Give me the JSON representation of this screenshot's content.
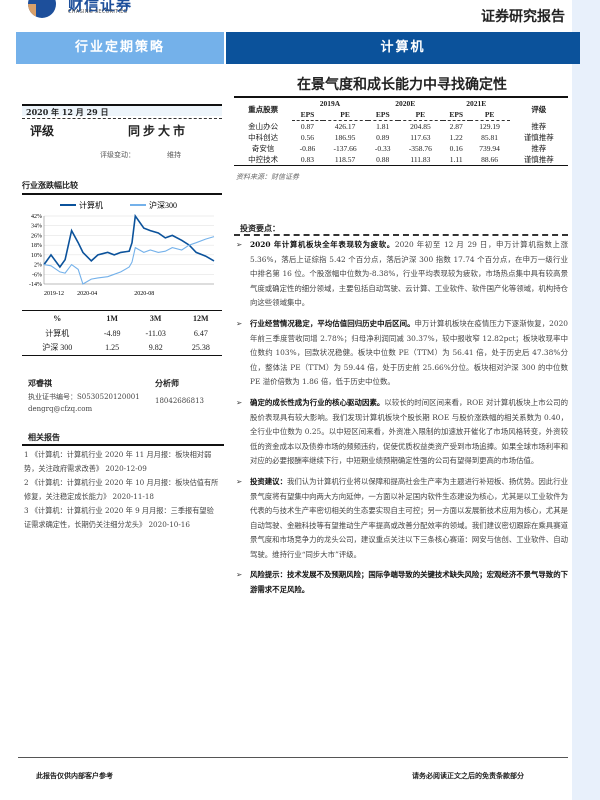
{
  "header": {
    "logo_cn": "财信证券",
    "logo_en": "CHASING SECURITIES",
    "report_type": "证券研究报告"
  },
  "band": {
    "left": "行业定期策略",
    "right": "计算机"
  },
  "title": "在景气度和成长能力中寻找确定性",
  "date": "2020 年 12 月 29 日",
  "rating": {
    "label": "评级",
    "value": "同步大市",
    "change_label": "评级变动：",
    "change_value": "维持"
  },
  "perf_section": {
    "title": "行业涨跌幅比较"
  },
  "chart_data": {
    "type": "line",
    "series": [
      {
        "name": "计算机",
        "color": "#0b529b",
        "values": [
          2,
          10,
          0,
          6,
          30,
          20,
          12,
          5,
          10,
          12,
          10,
          12,
          13,
          20,
          42,
          32,
          30,
          28,
          24,
          26,
          22,
          18,
          12,
          9,
          5
        ]
      },
      {
        "name": "沪深300",
        "color": "#74b1ea",
        "values": [
          2,
          1,
          -4,
          -5,
          2,
          -2,
          -14,
          -10,
          -9,
          -8,
          -6,
          -4,
          0,
          4,
          16,
          12,
          14,
          12,
          13,
          16,
          14,
          18,
          20,
          23,
          25
        ]
      }
    ],
    "x": [
      "2019-12-31",
      "2020-01-15",
      "2020-02-03",
      "2020-02-14",
      "2020-02-28",
      "2020-03-13",
      "2020-03-23",
      "2020-04-10",
      "2020-04-24",
      "2020-05-15",
      "2020-05-29",
      "2020-06-12",
      "2020-06-30",
      "2020-07-06",
      "2020-07-13",
      "2020-07-31",
      "2020-08-14",
      "2020-08-31",
      "2020-09-15",
      "2020-09-30",
      "2020-10-20",
      "2020-11-05",
      "2020-11-20",
      "2020-12-10",
      "2020-12-28"
    ],
    "xticks": [
      "2019-12",
      "2020-04",
      "2020-08"
    ],
    "yticks": [
      "42%",
      "34%",
      "26%",
      "18%",
      "10%",
      "2%",
      "-6%",
      "-14%"
    ],
    "ylim": [
      -14,
      42
    ],
    "grid": true,
    "legend": "top"
  },
  "perf_table": {
    "headers": [
      "%",
      "1M",
      "3M",
      "12M"
    ],
    "rows": [
      [
        "计算机",
        "-4.89",
        "-11.03",
        "6.47"
      ],
      [
        "沪深 300",
        "1.25",
        "9.82",
        "25.38"
      ]
    ]
  },
  "analyst": {
    "name": "邓睿祺",
    "title": "分析师",
    "license": "执业证书编号：S0530520120001",
    "phone": "18042686813",
    "email": "dengrq@cfzq.com"
  },
  "related": {
    "title": "相关报告",
    "items": [
      "1 《计算机：计算机行业 2020 年 11 月月报：板块相对弱势，关注政府需求改善》 2020-12-09",
      "2 《计算机：计算机行业 2020 年 10 月月报：板块估值有所修复，关注稳定成长能力》 2020-11-18",
      "3 《计算机：计算机行业 2020 年 9 月月报：三季报有望验证需求确定性，长期仍关注细分龙头》 2020-10-16"
    ]
  },
  "stocks": {
    "header": "重点股票",
    "years": [
      "2019A",
      "2020E",
      "2021E"
    ],
    "sub": [
      "EPS",
      "PE",
      "EPS",
      "PE",
      "EPS",
      "PE"
    ],
    "rating_header": "评级",
    "rows": [
      [
        "金山办公",
        "0.87",
        "426.17",
        "1.81",
        "204.85",
        "2.87",
        "129.19",
        "推荐"
      ],
      [
        "中科创达",
        "0.56",
        "186.95",
        "0.89",
        "117.63",
        "1.22",
        "85.81",
        "谨慎推荐"
      ],
      [
        "奇安信",
        "-0.86",
        "-137.66",
        "-0.33",
        "-358.76",
        "0.16",
        "739.94",
        "推荐"
      ],
      [
        "中控技术",
        "0.83",
        "118.57",
        "0.88",
        "111.83",
        "1.11",
        "88.66",
        "谨慎推荐"
      ]
    ],
    "source": "资料来源：财信证券"
  },
  "key_points": {
    "title": "投资要点：",
    "items": [
      {
        "lead": "2020 年计算机板块全年表现较为疲软。",
        "text": "2020 年初至 12 月 29 日，申万计算机指数上涨 5.36%，落后上证综指 5.42 个百分点，落后沪深 300 指数 17.74 个百分点，在申万一级行业中排名第 16 位。个股涨幅中位数为-8.38%，行业平均表现较为疲软，市场热点集中具有较高景气度或确定性的细分领域，主要包括自动驾驶、云计算、工业软件、软件国产化等领域，机构持仓向这些领域集中。"
      },
      {
        "lead": "行业经营情况稳定，平均估值回归历史中后区间。",
        "text": "申万计算机板块在疫情压力下逐渐恢复，2020 年前三季度营收同增 2.78%；归母净利润同减 30.37%，较中报收窄 12.82pct；板块收现率中位数约 103%，回款状况稳健。板块中位数 PE（TTM）为 56.41 倍，处于历史后 47.38%分位，整体法 PE（TTM）为 59.44 倍，处于历史前 25.66%分位。板块相对沪深 300 的中位数 PE 溢价倍数为 1.86 倍，低于历史中位数。"
      },
      {
        "lead": "确定的成长性成为行业的核心驱动因素。",
        "text": "以较长的时间区间来看，ROE 对计算机板块上市公司的股价表现具有较大影响。我们发现计算机板块个股长期 ROE 与股价涨跌幅的相关系数为 0.40，全行业中位数为 0.25。以中短区间来看，外资准入限制的加速放开催化了市场风格转变，外资较低的资金成本以及债券市场的频频违约，促使优质权益类资产受到市场追捧。如果全球市场利率和对应的必要报酬率继续下行，中短期业绩预期确定性强的公司有望得到更高的市场估值。"
      },
      {
        "lead": "投资建议：",
        "text": "我们认为计算机行业将以保障和提高社会生产率为主题进行补短板、扬优势。因此行业景气度将有望集中向两大方向延伸，一方面以补足国内软件生态建设为核心，尤其是以工业软件为代表的与技术生产率密切相关的生态要实现自主可控；另一方面以发展新技术应用为核心，尤其是自动驾驶、金融科技等有望推动生产率提高或改善分配效率的领域。我们建议密切跟踪在乘具赛道景气度和市场竞争力的龙头公司，建议重点关注以下三条核心赛道：网安与信创、工业软件、自动驾驶。维持行业“同步大市”评级。"
      },
      {
        "lead": "风险提示：技术发展不及预期风险；国际争端导致的关键技术缺失风险；宏观经济不景气导致的下游需求不足风险。",
        "text": ""
      }
    ]
  },
  "footer": {
    "left": "此报告仅供内部客户参考",
    "right": "请务必阅读正文之后的免责条款部分"
  }
}
